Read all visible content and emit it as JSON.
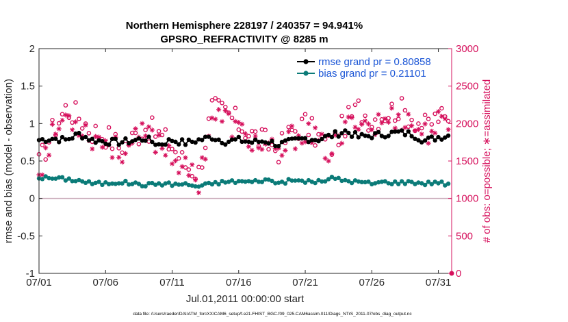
{
  "chart_data": {
    "type": "line",
    "title_line1": "Northern Hemisphere 228197 / 240357 = 94.941%",
    "title_line2": "GPSRO_REFRACTIVITY @ 8285 m",
    "xlabel": "Jul.01,2011 00:00:00 start",
    "ylabel_left": "rmse and bias (model - observation)",
    "ylabel_right": "# of obs: o=possible; ∗=assimilated",
    "xlim": [
      0,
      31
    ],
    "ylim_left": [
      -1,
      2
    ],
    "ylim_right": [
      0,
      3000
    ],
    "x_ticks": [
      0,
      5,
      10,
      15,
      20,
      25,
      30
    ],
    "x_tick_labels": [
      "07/01",
      "07/06",
      "07/11",
      "07/16",
      "07/21",
      "07/26",
      "07/31"
    ],
    "y_left_ticks": [
      -1,
      -0.5,
      0,
      0.5,
      1,
      1.5,
      2
    ],
    "y_left_tick_labels": [
      "-1",
      "-0.5",
      "0",
      "0.5",
      "1",
      "1.5",
      "2"
    ],
    "y_right_ticks": [
      0,
      500,
      1000,
      1500,
      2000,
      2500,
      3000
    ],
    "y_right_tick_labels": [
      "0",
      "500",
      "1000",
      "1500",
      "2000",
      "2500",
      "3000"
    ],
    "legend_position": "top-right",
    "footnote": "data file: /Users/raeder/DAI/ATM_forcXX/CAM6_setup/f.e21.FHIST_BGC.f09_025.CAM6assim.011/Diags_NTrS_2011-07/obs_diag_output.nc",
    "colors": {
      "rmse": "#000000",
      "bias": "#0b7b78",
      "obs": "#d6105c",
      "zero_line": "#c8a8b8",
      "axis": "#262626"
    },
    "series": [
      {
        "name": "rmse grand pr = 0.80858",
        "axis": "left",
        "marker": "filled-circle",
        "control_points": [
          [
            0,
            0.78
          ],
          [
            1,
            0.8
          ],
          [
            2,
            0.78
          ],
          [
            3,
            0.86
          ],
          [
            4,
            0.78
          ],
          [
            5,
            0.76
          ],
          [
            6,
            0.75
          ],
          [
            7,
            0.77
          ],
          [
            8,
            0.8
          ],
          [
            9,
            0.72
          ],
          [
            10,
            0.78
          ],
          [
            11,
            0.74
          ],
          [
            12,
            0.78
          ],
          [
            13,
            0.82
          ],
          [
            14,
            0.76
          ],
          [
            15,
            0.78
          ],
          [
            16,
            0.75
          ],
          [
            17,
            0.77
          ],
          [
            18,
            0.72
          ],
          [
            19,
            0.76
          ],
          [
            20,
            0.8
          ],
          [
            21,
            0.79
          ],
          [
            22,
            0.84
          ],
          [
            23,
            0.9
          ],
          [
            24,
            0.82
          ],
          [
            25,
            0.84
          ],
          [
            26,
            0.86
          ],
          [
            27,
            0.88
          ],
          [
            28,
            0.86
          ],
          [
            29,
            0.77
          ],
          [
            30,
            0.82
          ],
          [
            30.75,
            0.84
          ]
        ],
        "points_per_day": 4
      },
      {
        "name": "bias grand pr = 0.21101",
        "axis": "left",
        "marker": "filled-circle",
        "control_points": [
          [
            0,
            0.28
          ],
          [
            1,
            0.27
          ],
          [
            2,
            0.26
          ],
          [
            3,
            0.24
          ],
          [
            4,
            0.2
          ],
          [
            5,
            0.2
          ],
          [
            6,
            0.22
          ],
          [
            7,
            0.2
          ],
          [
            8,
            0.18
          ],
          [
            9,
            0.2
          ],
          [
            10,
            0.19
          ],
          [
            11,
            0.19
          ],
          [
            12,
            0.16
          ],
          [
            13,
            0.2
          ],
          [
            14,
            0.22
          ],
          [
            15,
            0.23
          ],
          [
            16,
            0.22
          ],
          [
            17,
            0.25
          ],
          [
            18,
            0.21
          ],
          [
            19,
            0.24
          ],
          [
            20,
            0.23
          ],
          [
            21,
            0.22
          ],
          [
            22,
            0.27
          ],
          [
            23,
            0.24
          ],
          [
            24,
            0.22
          ],
          [
            25,
            0.2
          ],
          [
            26,
            0.22
          ],
          [
            27,
            0.21
          ],
          [
            28,
            0.22
          ],
          [
            29,
            0.2
          ],
          [
            30,
            0.22
          ],
          [
            30.75,
            0.18
          ]
        ],
        "points_per_day": 4
      },
      {
        "name": "obs possible",
        "axis": "right",
        "marker": "open-circle",
        "control_points": [
          [
            0,
            1450
          ],
          [
            1,
            1900
          ],
          [
            2,
            2200
          ],
          [
            3,
            2100
          ],
          [
            4,
            1900
          ],
          [
            5,
            1850
          ],
          [
            6,
            1700
          ],
          [
            7,
            1800
          ],
          [
            8,
            1950
          ],
          [
            9,
            1850
          ],
          [
            10,
            1700
          ],
          [
            11,
            1450
          ],
          [
            12,
            1350
          ],
          [
            13,
            2200
          ],
          [
            14,
            2150
          ],
          [
            15,
            2000
          ],
          [
            16,
            1850
          ],
          [
            17,
            1750
          ],
          [
            18,
            1650
          ],
          [
            19,
            1900
          ],
          [
            20,
            2000
          ],
          [
            21,
            1800
          ],
          [
            22,
            1700
          ],
          [
            23,
            2000
          ],
          [
            24,
            2200
          ],
          [
            25,
            2050
          ],
          [
            26,
            2150
          ],
          [
            27,
            2200
          ],
          [
            28,
            2100
          ],
          [
            29,
            1950
          ],
          [
            30,
            2100
          ],
          [
            30.75,
            2000
          ]
        ],
        "points_per_day": 4
      },
      {
        "name": "obs assimilated",
        "axis": "right",
        "marker": "asterisk",
        "control_points": [
          [
            0,
            1380
          ],
          [
            1,
            1820
          ],
          [
            2,
            2100
          ],
          [
            3,
            2000
          ],
          [
            4,
            1820
          ],
          [
            5,
            1770
          ],
          [
            6,
            1620
          ],
          [
            7,
            1720
          ],
          [
            8,
            1860
          ],
          [
            9,
            1760
          ],
          [
            10,
            1600
          ],
          [
            11,
            1370
          ],
          [
            12,
            1250
          ],
          [
            13,
            2100
          ],
          [
            14,
            2050
          ],
          [
            15,
            1900
          ],
          [
            16,
            1770
          ],
          [
            17,
            1670
          ],
          [
            18,
            1560
          ],
          [
            19,
            1810
          ],
          [
            20,
            1900
          ],
          [
            21,
            1720
          ],
          [
            22,
            1610
          ],
          [
            23,
            1900
          ],
          [
            24,
            2100
          ],
          [
            25,
            1950
          ],
          [
            26,
            2050
          ],
          [
            27,
            2100
          ],
          [
            28,
            2000
          ],
          [
            29,
            1860
          ],
          [
            30,
            2000
          ],
          [
            30.75,
            1900
          ]
        ],
        "points_per_day": 4
      }
    ],
    "right_axis_marker": {
      "x": 31,
      "value": 0
    }
  }
}
